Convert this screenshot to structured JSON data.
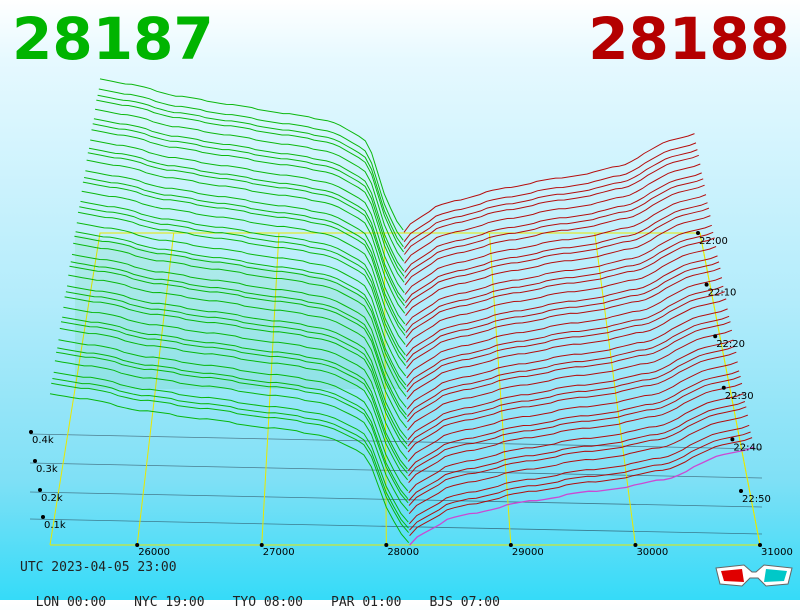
{
  "header": {
    "bid_price": "28187",
    "ask_price": "28188"
  },
  "footer": {
    "utc": "UTC 2023-04-05 23:00",
    "zones": [
      "LON 00:00",
      "NYC 19:00",
      "TYO 08:00",
      "PAR 01:00",
      "BJS 07:00"
    ]
  },
  "colors": {
    "bid": "#00b400",
    "ask": "#b40000",
    "latest_ask": "#d040d0",
    "grid": "#e8e800"
  },
  "icons": {
    "stereo_glasses": "3d-glasses-icon"
  },
  "chart_data": {
    "type": "area",
    "title": "",
    "x_ticks": [
      "26000",
      "27000",
      "28000",
      "29000",
      "30000",
      "31000"
    ],
    "xlim": [
      25300,
      31000
    ],
    "y_ticks": [
      "0.1k",
      "0.2k",
      "0.3k",
      "0.4k"
    ],
    "time_ticks": [
      "22:00",
      "22:10",
      "22:20",
      "22:30",
      "22:40",
      "22:50"
    ],
    "mid_price": 28187.5,
    "bid_depth_profile": [
      {
        "price": 25300,
        "cum_qty": 360
      },
      {
        "price": 25700,
        "cum_qty": 340
      },
      {
        "price": 26000,
        "cum_qty": 320
      },
      {
        "price": 26500,
        "cum_qty": 300
      },
      {
        "price": 27000,
        "cum_qty": 280
      },
      {
        "price": 27500,
        "cum_qty": 260
      },
      {
        "price": 27850,
        "cum_qty": 210
      },
      {
        "price": 28000,
        "cum_qty": 90
      },
      {
        "price": 28100,
        "cum_qty": 30
      },
      {
        "price": 28187,
        "cum_qty": 0
      }
    ],
    "ask_depth_profile": [
      {
        "price": 28188,
        "cum_qty": 0
      },
      {
        "price": 28250,
        "cum_qty": 20
      },
      {
        "price": 28500,
        "cum_qty": 60
      },
      {
        "price": 29000,
        "cum_qty": 95
      },
      {
        "price": 29500,
        "cum_qty": 120
      },
      {
        "price": 30000,
        "cum_qty": 140
      },
      {
        "price": 30300,
        "cum_qty": 160
      },
      {
        "price": 30700,
        "cum_qty": 215
      },
      {
        "price": 30950,
        "cum_qty": 230
      }
    ]
  }
}
